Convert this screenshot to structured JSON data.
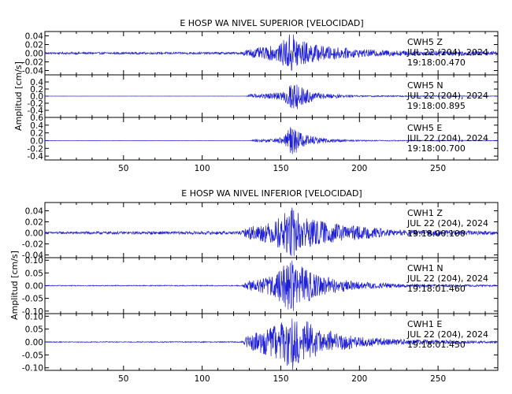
{
  "colors": {
    "trace": "#1f1fd6",
    "axis": "#000000",
    "background": "#ffffff"
  },
  "chart_data": [
    {
      "type": "line",
      "title": "E HOSP WA NIVEL SUPERIOR [VELOCIDAD]",
      "ylabel": "Amplitud [cm/s]",
      "xlim": [
        0,
        288
      ],
      "xticks": [
        50,
        100,
        150,
        200,
        250
      ],
      "xtick_labels": [
        "50",
        "100",
        "150",
        "200",
        "250"
      ],
      "panels": [
        {
          "station": "CWH5",
          "component": "Z",
          "date": "JUL 22 (204), 2024",
          "time": "19:18:00.470",
          "ylim": [
            -0.05,
            0.05
          ],
          "yticks": [
            -0.04,
            -0.02,
            0.0,
            0.02,
            0.04
          ],
          "ytick_labels": [
            "-0.04",
            "-0.02",
            "0.00",
            "0.02",
            "0.04"
          ],
          "noise": 0.0022,
          "envelope": [
            [
              0,
              0.0022
            ],
            [
              125,
              0.0025
            ],
            [
              128,
              0.009
            ],
            [
              140,
              0.014
            ],
            [
              150,
              0.022
            ],
            [
              155,
              0.045
            ],
            [
              158,
              0.05
            ],
            [
              163,
              0.03
            ],
            [
              175,
              0.018
            ],
            [
              200,
              0.009
            ],
            [
              230,
              0.006
            ],
            [
              288,
              0.005
            ]
          ]
        },
        {
          "station": "CWH5",
          "component": "N",
          "date": "JUL 22 (204), 2024",
          "time": "19:18:00.895",
          "ylim": [
            -0.6,
            0.6
          ],
          "yticks": [
            -0.4,
            -0.2,
            0.0,
            0.2,
            0.4
          ],
          "ytick_labels": [
            "-0.4",
            "-0.2",
            "0.0",
            "0.2",
            "0.4"
          ],
          "noise": 0.0015,
          "envelope": [
            [
              0,
              0.0015
            ],
            [
              128,
              0.002
            ],
            [
              130,
              0.05
            ],
            [
              145,
              0.08
            ],
            [
              152,
              0.14
            ],
            [
              156,
              0.42
            ],
            [
              159,
              0.48
            ],
            [
              163,
              0.25
            ],
            [
              175,
              0.08
            ],
            [
              200,
              0.02
            ],
            [
              288,
              0.008
            ]
          ]
        },
        {
          "station": "CWH5",
          "component": "E",
          "date": "JUL 22 (204), 2024",
          "time": "19:18:00.700",
          "ylim": [
            -0.5,
            0.6
          ],
          "yticks": [
            -0.4,
            -0.2,
            0.0,
            0.2,
            0.4,
            0.6
          ],
          "ytick_labels": [
            "-0.4",
            "-0.2",
            "0.0",
            "0.2",
            "0.4",
            "0.6"
          ],
          "noise": 0.0015,
          "envelope": [
            [
              0,
              0.0015
            ],
            [
              130,
              0.002
            ],
            [
              132,
              0.03
            ],
            [
              145,
              0.05
            ],
            [
              152,
              0.1
            ],
            [
              156,
              0.38
            ],
            [
              159,
              0.34
            ],
            [
              165,
              0.15
            ],
            [
              180,
              0.05
            ],
            [
              200,
              0.015
            ],
            [
              288,
              0.006
            ]
          ]
        }
      ]
    },
    {
      "type": "line",
      "title": "E HOSP WA NIVEL INFERIOR [VELOCIDAD]",
      "ylabel": "Amplitud [cm/s]",
      "xlim": [
        0,
        288
      ],
      "xticks": [
        50,
        100,
        150,
        200,
        250
      ],
      "xtick_labels": [
        "50",
        "100",
        "150",
        "200",
        "250"
      ],
      "panels": [
        {
          "station": "CWH1",
          "component": "Z",
          "date": "JUL 22 (204), 2024",
          "time": "19:18:00.100",
          "ylim": [
            -0.045,
            0.055
          ],
          "yticks": [
            -0.04,
            -0.02,
            0.0,
            0.02,
            0.04
          ],
          "ytick_labels": [
            "-0.04",
            "-0.02",
            "0.00",
            "0.02",
            "0.04"
          ],
          "noise": 0.002,
          "envelope": [
            [
              0,
              0.002
            ],
            [
              125,
              0.003
            ],
            [
              130,
              0.012
            ],
            [
              145,
              0.02
            ],
            [
              152,
              0.035
            ],
            [
              156,
              0.05
            ],
            [
              160,
              0.04
            ],
            [
              170,
              0.025
            ],
            [
              190,
              0.015
            ],
            [
              220,
              0.006
            ],
            [
              288,
              0.003
            ]
          ]
        },
        {
          "station": "CWH1",
          "component": "N",
          "date": "JUL 22 (204), 2024",
          "time": "19:18:01.460",
          "ylim": [
            -0.11,
            0.11
          ],
          "yticks": [
            -0.1,
            -0.05,
            0.0,
            0.05,
            0.1
          ],
          "ytick_labels": [
            "-0.10",
            "-0.05",
            "0.00",
            "0.05",
            "0.10"
          ],
          "noise": 0.0015,
          "envelope": [
            [
              0,
              0.0015
            ],
            [
              125,
              0.002
            ],
            [
              130,
              0.02
            ],
            [
              145,
              0.04
            ],
            [
              152,
              0.08
            ],
            [
              157,
              0.11
            ],
            [
              162,
              0.08
            ],
            [
              175,
              0.04
            ],
            [
              200,
              0.015
            ],
            [
              230,
              0.006
            ],
            [
              288,
              0.003
            ]
          ]
        },
        {
          "station": "CWH1",
          "component": "E",
          "date": "JUL 22 (204), 2024",
          "time": "19:18:01.450",
          "ylim": [
            -0.11,
            0.11
          ],
          "yticks": [
            -0.1,
            -0.05,
            0.0,
            0.05,
            0.1
          ],
          "ytick_labels": [
            "-0.10",
            "-0.05",
            "0.00",
            "0.05",
            "0.10"
          ],
          "noise": 0.0015,
          "envelope": [
            [
              0,
              0.0015
            ],
            [
              125,
              0.002
            ],
            [
              130,
              0.03
            ],
            [
              145,
              0.06
            ],
            [
              152,
              0.09
            ],
            [
              157,
              0.11
            ],
            [
              162,
              0.1
            ],
            [
              175,
              0.05
            ],
            [
              200,
              0.02
            ],
            [
              230,
              0.01
            ],
            [
              288,
              0.004
            ]
          ]
        }
      ]
    }
  ]
}
